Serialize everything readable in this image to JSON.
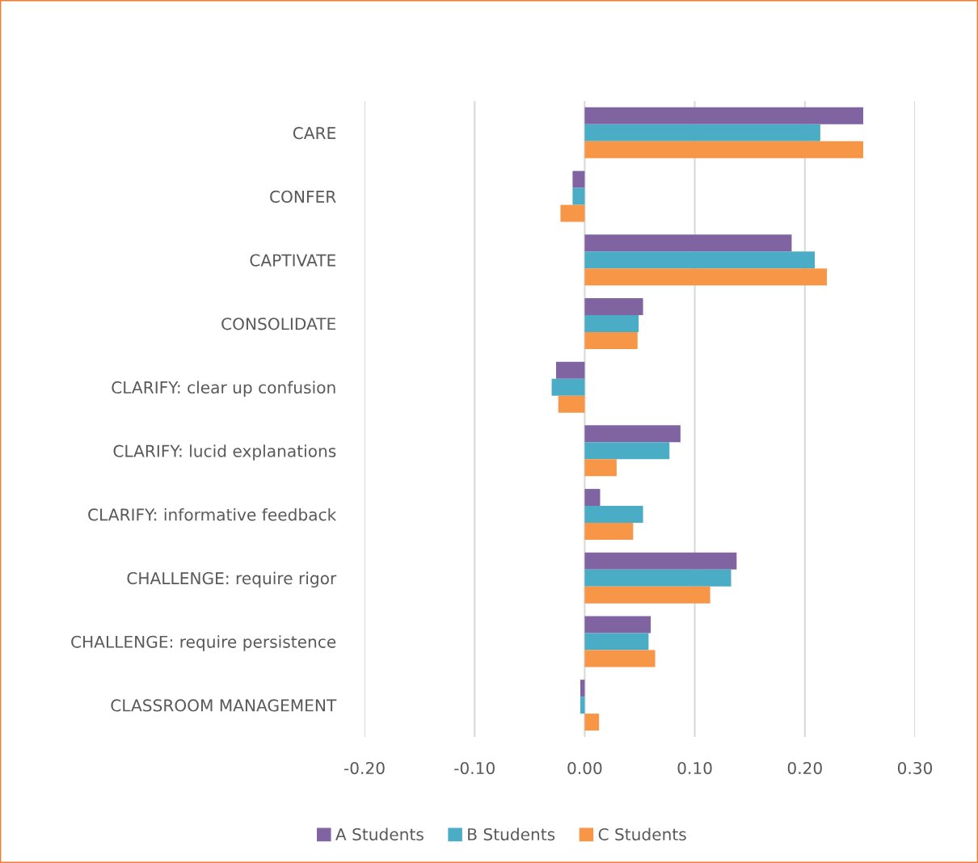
{
  "chart_data": {
    "type": "bar",
    "orientation": "horizontal",
    "categories": [
      "CARE",
      "CONFER",
      "CAPTIVATE",
      "CONSOLIDATE",
      "CLARIFY: clear up confusion",
      "CLARIFY: lucid explanations",
      "CLARIFY: informative feedback",
      "CHALLENGE: require rigor",
      "CHALLENGE: require persistence",
      "CLASSROOM MANAGEMENT"
    ],
    "series": [
      {
        "name": "A Students",
        "color": "#8064a2",
        "values": [
          0.253,
          -0.011,
          0.188,
          0.053,
          -0.026,
          0.087,
          0.014,
          0.138,
          0.06,
          -0.004
        ]
      },
      {
        "name": "B Students",
        "color": "#4bacc6",
        "values": [
          0.214,
          -0.011,
          0.209,
          0.049,
          -0.03,
          0.077,
          0.053,
          0.133,
          0.058,
          -0.004
        ]
      },
      {
        "name": "C Students",
        "color": "#f79646",
        "values": [
          0.253,
          -0.022,
          0.22,
          0.048,
          -0.024,
          0.029,
          0.044,
          0.114,
          0.064,
          0.013
        ]
      }
    ],
    "xlim": [
      -0.2,
      0.3
    ],
    "xticks": [
      {
        "value": -0.2,
        "label": "-0.20"
      },
      {
        "value": -0.1,
        "label": "-0.10"
      },
      {
        "value": 0,
        "label": "0.00"
      },
      {
        "value": 0.1,
        "label": "0.10"
      },
      {
        "value": 0.2,
        "label": "0.20"
      },
      {
        "value": 0.3,
        "label": "0.30"
      }
    ],
    "grid": "x",
    "legend": "bottom"
  }
}
